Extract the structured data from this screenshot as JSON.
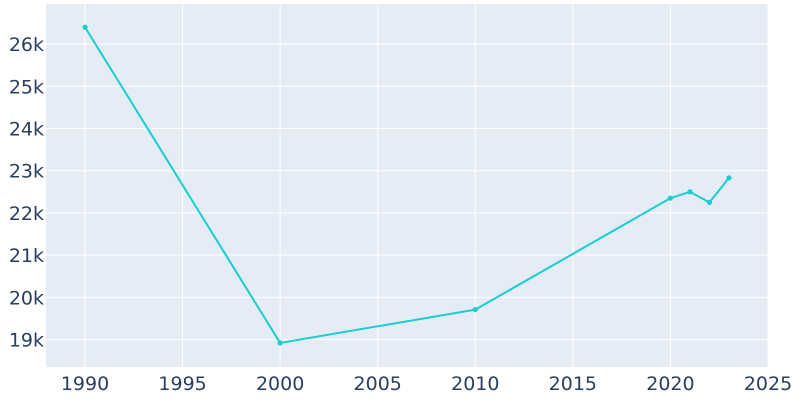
{
  "chart_data": {
    "type": "line",
    "title": "",
    "xlabel": "",
    "ylabel": "",
    "x": [
      1990,
      2000,
      2010,
      2020,
      2021,
      2022,
      2023
    ],
    "series": [
      {
        "values": [
          26400,
          18920,
          19710,
          22350,
          22500,
          22250,
          22830
        ]
      }
    ],
    "xlim": [
      1988,
      2025
    ],
    "ylim": [
      18350,
      26950
    ],
    "x_ticks": [
      1990,
      1995,
      2000,
      2005,
      2010,
      2015,
      2020,
      2025
    ],
    "x_tick_labels": [
      "1990",
      "1995",
      "2000",
      "2005",
      "2010",
      "2015",
      "2020",
      "2025"
    ],
    "y_ticks": [
      19000,
      20000,
      21000,
      22000,
      23000,
      24000,
      25000,
      26000
    ],
    "y_tick_labels": [
      "19k",
      "20k",
      "21k",
      "22k",
      "23k",
      "24k",
      "25k",
      "26k"
    ],
    "grid": true,
    "colors": {
      "plot_background": "#e5ecf6",
      "grid": "#ffffff",
      "line": "#17cfcf",
      "tick_text": "#2a3f5f"
    }
  }
}
